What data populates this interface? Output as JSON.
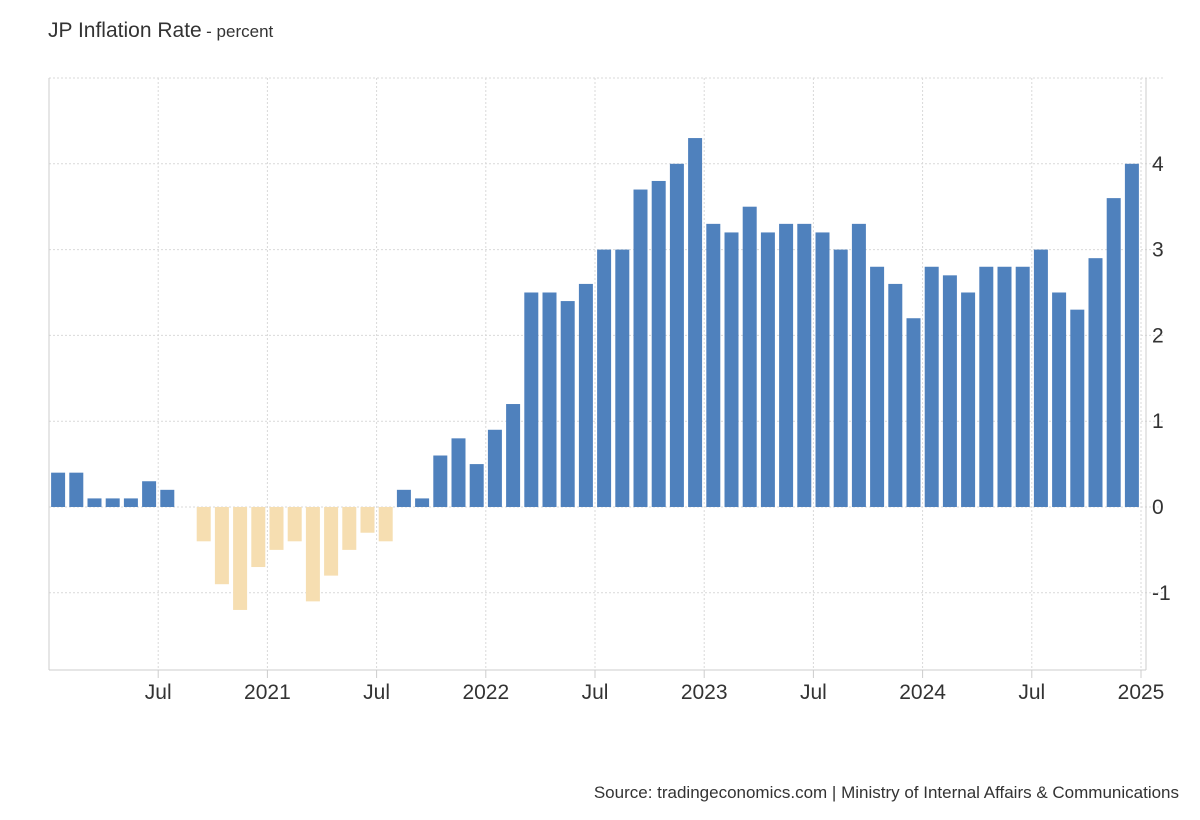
{
  "header": {
    "title": "JP Inflation Rate",
    "subtitle": "- percent"
  },
  "footer": {
    "source": "Source: tradingeconomics.com | Ministry of Internal Affairs & Communications"
  },
  "colors": {
    "positive": "#4f81bd",
    "negative": "#f6deb1",
    "grid": "#d9d9d9"
  },
  "chart_data": {
    "type": "bar",
    "title": "JP Inflation Rate",
    "subtitle": "- percent",
    "y_axis_side": "right",
    "ylim": [
      -1.9,
      5.0
    ],
    "yticks": [
      -1,
      0,
      1,
      2,
      3,
      4
    ],
    "ytick_labels": [
      "-1",
      "0",
      "1",
      "2",
      "3",
      "4"
    ],
    "xtick_labels": [
      "Jul",
      "2021",
      "Jul",
      "2022",
      "Jul",
      "2023",
      "Jul",
      "2024",
      "Jul",
      "2025"
    ],
    "xtick_index": [
      5.5,
      11.5,
      17.5,
      23.5,
      29.5,
      35.5,
      41.5,
      47.5,
      53.5,
      59.5
    ],
    "categories": [
      "2020-02",
      "2020-03",
      "2020-04",
      "2020-05",
      "2020-06",
      "2020-07",
      "2020-08",
      "2020-09",
      "2020-10",
      "2020-11",
      "2020-12",
      "2021-01",
      "2021-02",
      "2021-03",
      "2021-04",
      "2021-05",
      "2021-06",
      "2021-07",
      "2021-08",
      "2021-09",
      "2021-10",
      "2021-11",
      "2021-12",
      "2022-01",
      "2022-02",
      "2022-03",
      "2022-04",
      "2022-05",
      "2022-06",
      "2022-07",
      "2022-08",
      "2022-09",
      "2022-10",
      "2022-11",
      "2022-12",
      "2023-01",
      "2023-02",
      "2023-03",
      "2023-04",
      "2023-05",
      "2023-06",
      "2023-07",
      "2023-08",
      "2023-09",
      "2023-10",
      "2023-11",
      "2023-12",
      "2024-01",
      "2024-02",
      "2024-03",
      "2024-04",
      "2024-05",
      "2024-06",
      "2024-07",
      "2024-08",
      "2024-09",
      "2024-10",
      "2024-11",
      "2024-12",
      "2025-01"
    ],
    "values": [
      0.4,
      0.4,
      0.1,
      0.1,
      0.1,
      0.3,
      0.2,
      0.0,
      -0.4,
      -0.9,
      -1.2,
      -0.7,
      -0.5,
      -0.4,
      -1.1,
      -0.8,
      -0.5,
      -0.3,
      -0.4,
      0.2,
      0.1,
      0.6,
      0.8,
      0.5,
      0.9,
      1.2,
      2.5,
      2.5,
      2.4,
      2.6,
      3.0,
      3.0,
      3.7,
      3.8,
      4.0,
      4.3,
      3.3,
      3.2,
      3.5,
      3.2,
      3.3,
      3.3,
      3.2,
      3.0,
      3.3,
      2.8,
      2.6,
      2.2,
      2.8,
      2.7,
      2.5,
      2.8,
      2.8,
      2.8,
      3.0,
      2.5,
      2.3,
      2.9,
      3.6,
      4.0
    ],
    "grid": true,
    "legend": "none"
  }
}
